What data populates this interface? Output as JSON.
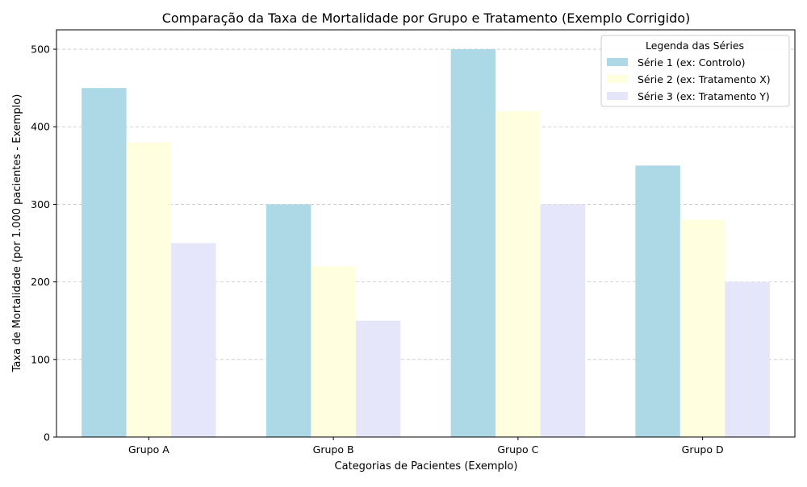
{
  "chart_data": {
    "type": "bar",
    "title": "Comparação da Taxa de Mortalidade por Grupo e Tratamento (Exemplo Corrigido)",
    "xlabel": "Categorias de Pacientes (Exemplo)",
    "ylabel": "Taxa de Mortalidade (por 1.000 pacientes - Exemplo)",
    "categories": [
      "Grupo A",
      "Grupo B",
      "Grupo C",
      "Grupo D"
    ],
    "series": [
      {
        "name": "Série 1 (ex: Controlo)",
        "values": [
          450,
          300,
          500,
          350
        ],
        "color": "#add8e6"
      },
      {
        "name": "Série 2 (ex: Tratamento X)",
        "values": [
          380,
          220,
          420,
          280
        ],
        "color": "#ffffe0"
      },
      {
        "name": "Série 3 (ex: Tratamento Y)",
        "values": [
          250,
          150,
          300,
          200
        ],
        "color": "#e6e6fa"
      }
    ],
    "ylim": [
      0,
      525
    ],
    "yticks": [
      0,
      100,
      200,
      300,
      400,
      500
    ],
    "grid": "y-dashed",
    "legend": {
      "title": "Legenda das Séries",
      "placement": "top-right"
    }
  }
}
